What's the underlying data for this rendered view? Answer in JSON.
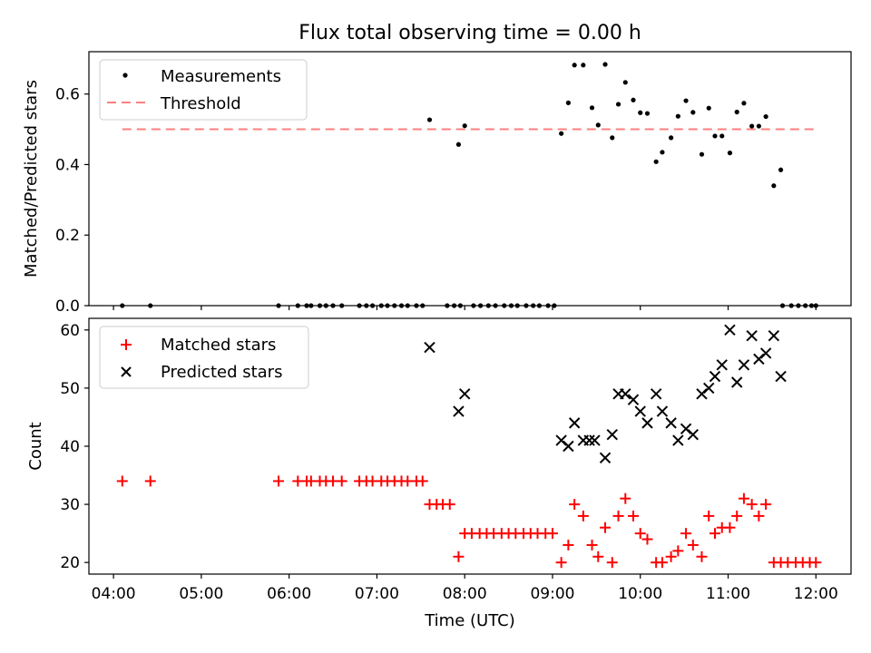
{
  "chart_data": [
    {
      "type": "scatter",
      "title": "Flux total observing time = 0.00 h",
      "xlabel": "",
      "ylabel": "Matched/Predicted stars",
      "ylim": [
        0,
        0.72
      ],
      "yticks": [
        "0.0",
        "0.2",
        "0.4",
        "0.6"
      ],
      "xticks": [
        "04:00",
        "05:00",
        "06:00",
        "07:00",
        "08:00",
        "09:00",
        "10:00",
        "11:00",
        "12:00"
      ],
      "xlim_hours": [
        3.72,
        12.4
      ],
      "legend_position": "upper-left",
      "grid": false,
      "threshold": {
        "name": "Threshold",
        "value": 0.5,
        "x_range": [
          4.1,
          12.0
        ],
        "color": "#ff7f7f",
        "style": "dashed"
      },
      "series": [
        {
          "name": "Measurements",
          "color": "#000000",
          "marker": "dot",
          "x": [
            4.1,
            4.42,
            5.88,
            6.1,
            6.2,
            6.25,
            6.35,
            6.42,
            6.5,
            6.6,
            6.8,
            6.88,
            6.95,
            7.05,
            7.12,
            7.2,
            7.28,
            7.35,
            7.45,
            7.52,
            7.8,
            7.88,
            7.95,
            8.1,
            8.18,
            8.27,
            8.35,
            8.45,
            8.53,
            8.6,
            8.7,
            8.78,
            8.85,
            8.95,
            9.02,
            11.62,
            11.72,
            11.8,
            11.88,
            11.95,
            12.0,
            7.6,
            7.93,
            8.0,
            9.1,
            9.18,
            9.25,
            9.35,
            9.45,
            9.52,
            9.6,
            9.68,
            9.75,
            9.83,
            9.92,
            10.0,
            10.08,
            10.18,
            10.25,
            10.35,
            10.43,
            10.52,
            10.6,
            10.7,
            10.78,
            10.85,
            10.93,
            11.02,
            11.1,
            11.18,
            11.27,
            11.35,
            11.43,
            11.52,
            11.6
          ],
          "y": [
            0,
            0,
            0,
            0,
            0,
            0,
            0,
            0,
            0,
            0,
            0,
            0,
            0,
            0,
            0,
            0,
            0,
            0,
            0,
            0,
            0,
            0,
            0,
            0,
            0,
            0,
            0,
            0,
            0,
            0,
            0,
            0,
            0,
            0,
            0,
            0,
            0,
            0,
            0,
            0,
            0,
            0.527,
            0.457,
            0.51,
            0.488,
            0.575,
            0.682,
            0.682,
            0.561,
            0.512,
            0.684,
            0.476,
            0.571,
            0.633,
            0.583,
            0.547,
            0.545,
            0.408,
            0.435,
            0.476,
            0.537,
            0.581,
            0.548,
            0.429,
            0.56,
            0.481,
            0.481,
            0.433,
            0.549,
            0.574,
            0.509,
            0.509,
            0.536,
            0.34,
            0.385
          ]
        }
      ]
    },
    {
      "type": "scatter",
      "title": "",
      "xlabel": "Time (UTC)",
      "ylabel": "Count",
      "ylim": [
        18,
        62
      ],
      "yticks": [
        "20",
        "30",
        "40",
        "50",
        "60"
      ],
      "xticks": [
        "04:00",
        "05:00",
        "06:00",
        "07:00",
        "08:00",
        "09:00",
        "10:00",
        "11:00",
        "12:00"
      ],
      "xlim_hours": [
        3.72,
        12.4
      ],
      "legend_position": "upper-left",
      "grid": false,
      "series": [
        {
          "name": "Matched stars",
          "color": "#ff0000",
          "marker": "plus",
          "x": [
            4.1,
            4.42,
            5.88,
            6.1,
            6.2,
            6.25,
            6.35,
            6.42,
            6.5,
            6.6,
            6.8,
            6.88,
            6.95,
            7.05,
            7.12,
            7.2,
            7.28,
            7.35,
            7.45,
            7.52,
            7.6,
            7.68,
            7.75,
            7.83,
            7.93,
            8.0,
            8.08,
            8.17,
            8.25,
            8.33,
            8.42,
            8.5,
            8.58,
            8.67,
            8.75,
            8.83,
            8.92,
            9.0,
            9.1,
            9.18,
            9.25,
            9.35,
            9.45,
            9.52,
            9.6,
            9.68,
            9.75,
            9.83,
            9.92,
            10.0,
            10.08,
            10.18,
            10.25,
            10.35,
            10.43,
            10.52,
            10.6,
            10.7,
            10.78,
            10.85,
            10.93,
            11.02,
            11.1,
            11.18,
            11.27,
            11.35,
            11.43,
            11.52,
            11.6,
            11.68,
            11.77,
            11.85,
            11.93,
            12.0
          ],
          "y": [
            34,
            34,
            34,
            34,
            34,
            34,
            34,
            34,
            34,
            34,
            34,
            34,
            34,
            34,
            34,
            34,
            34,
            34,
            34,
            34,
            30,
            30,
            30,
            30,
            21,
            25,
            25,
            25,
            25,
            25,
            25,
            25,
            25,
            25,
            25,
            25,
            25,
            25,
            20,
            23,
            30,
            28,
            23,
            21,
            26,
            20,
            28,
            31,
            28,
            25,
            24,
            20,
            20,
            21,
            22,
            25,
            23,
            21,
            28,
            25,
            26,
            26,
            28,
            31,
            30,
            28,
            30,
            20,
            20,
            20,
            20,
            20,
            20,
            20
          ]
        },
        {
          "name": "Predicted stars",
          "color": "#000000",
          "marker": "x",
          "x": [
            7.6,
            7.93,
            8.0,
            9.1,
            9.18,
            9.25,
            9.35,
            9.42,
            9.48,
            9.6,
            9.68,
            9.75,
            9.83,
            9.92,
            10.0,
            10.08,
            10.18,
            10.25,
            10.35,
            10.43,
            10.52,
            10.6,
            10.7,
            10.78,
            10.85,
            10.93,
            11.02,
            11.1,
            11.18,
            11.27,
            11.35,
            11.43,
            11.52,
            11.6
          ],
          "y": [
            57,
            46,
            49,
            41,
            40,
            44,
            41,
            41,
            41,
            38,
            42,
            49,
            49,
            48,
            46,
            44,
            49,
            46,
            44,
            41,
            43,
            42,
            49,
            50,
            52,
            54,
            60,
            51,
            54,
            59,
            55,
            56,
            59,
            52
          ]
        }
      ]
    }
  ]
}
